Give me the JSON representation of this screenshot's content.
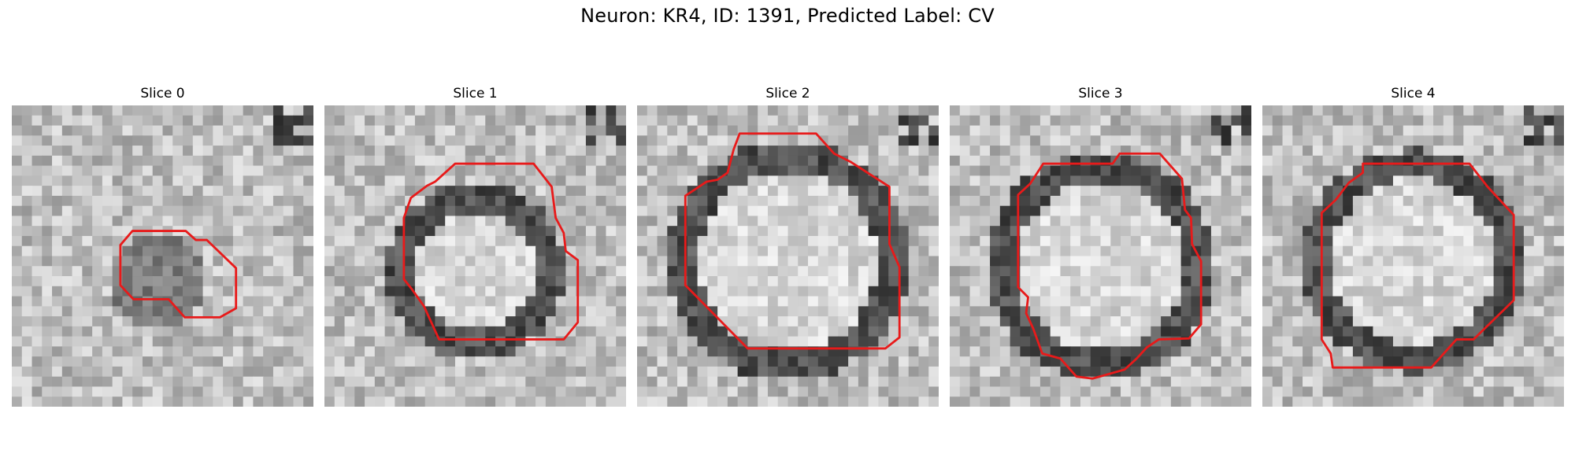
{
  "figure": {
    "title": "Neuron: KR4, ID: 1391, Predicted Label: CV"
  },
  "slices": [
    {
      "label": "Slice 0"
    },
    {
      "label": "Slice 1"
    },
    {
      "label": "Slice 2"
    },
    {
      "label": "Slice 3"
    },
    {
      "label": "Slice 4"
    }
  ],
  "colors": {
    "contour": "#e81a1a",
    "background": "#ffffff"
  }
}
